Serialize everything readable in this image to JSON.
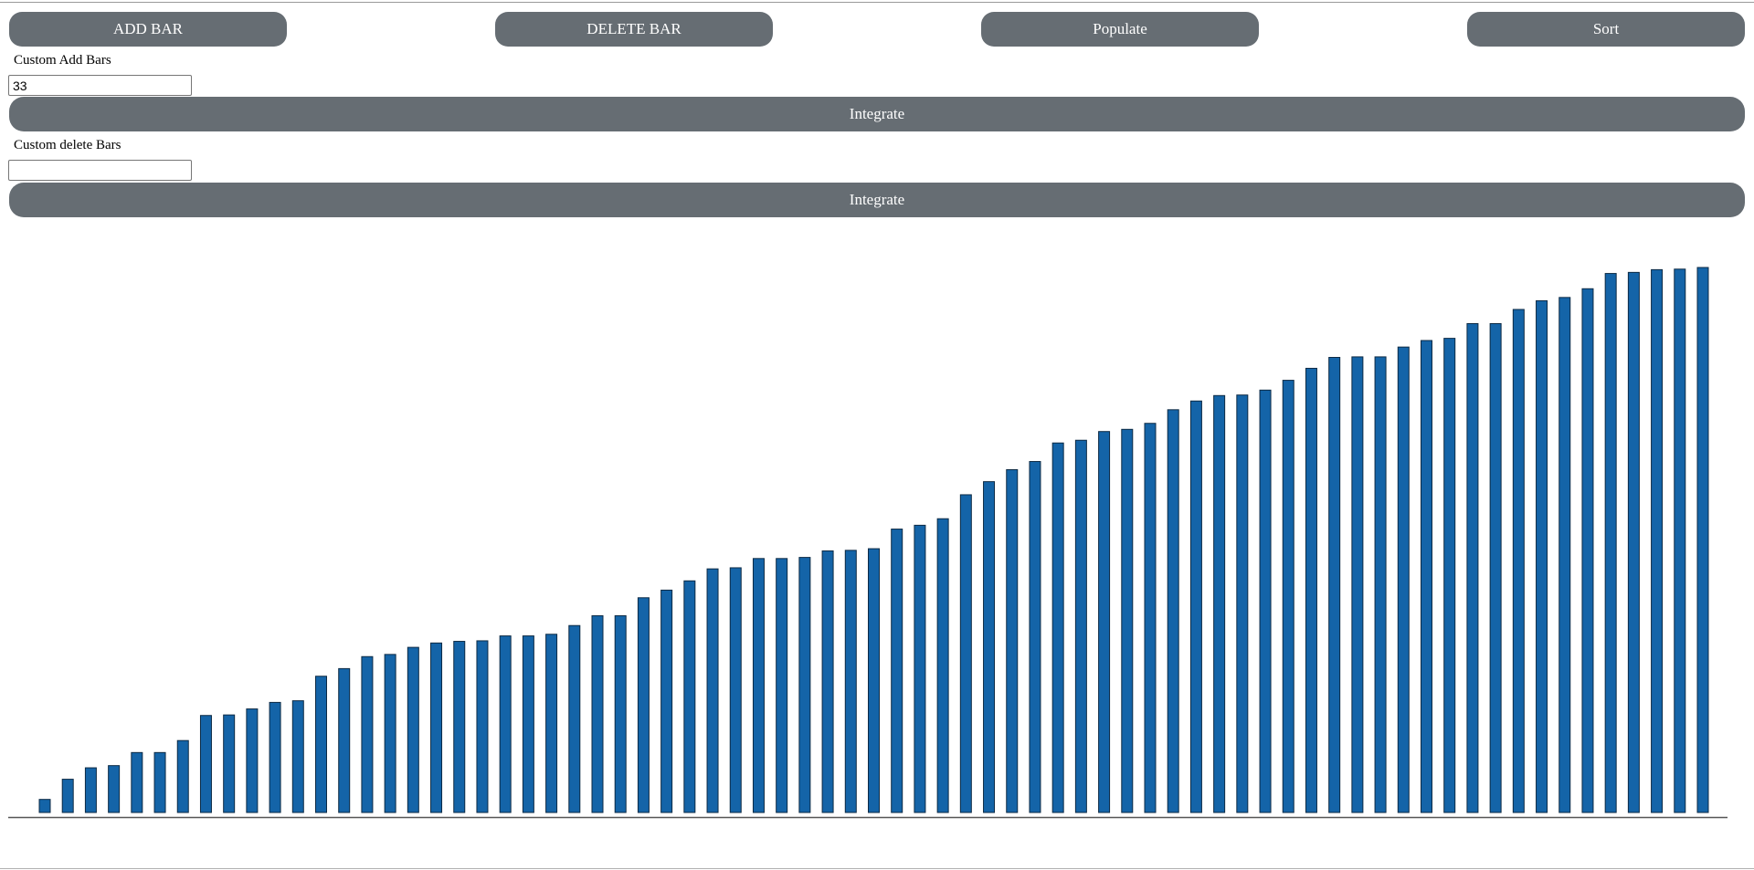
{
  "toolbar": {
    "add_label": "ADD BAR",
    "delete_label": "DELETE BAR",
    "populate_label": "Populate",
    "sort_label": "Sort"
  },
  "add_section": {
    "label": "Custom Add Bars",
    "value": "33",
    "button_label": "Integrate"
  },
  "delete_section": {
    "label": "Custom delete Bars",
    "value": "",
    "button_label": "Integrate"
  },
  "colors": {
    "button": "#666d73",
    "bar_fill": "#1464a8",
    "bar_stroke": "#0d2a44",
    "baseline": "#555555"
  },
  "chart_data": {
    "type": "bar",
    "title": "",
    "xlabel": "",
    "ylabel": "",
    "ylim": [
      0,
      100
    ],
    "values": [
      2.4,
      6.1,
      8.2,
      8.6,
      11.0,
      11.0,
      13.2,
      17.8,
      17.9,
      19.0,
      20.2,
      20.5,
      25.0,
      26.4,
      28.6,
      29.0,
      30.3,
      31.1,
      31.4,
      31.5,
      32.4,
      32.4,
      32.7,
      34.3,
      36.1,
      36.1,
      39.4,
      40.8,
      42.5,
      44.7,
      44.9,
      46.6,
      46.6,
      46.8,
      48.0,
      48.1,
      48.4,
      52.0,
      52.7,
      53.9,
      58.3,
      60.7,
      62.9,
      64.4,
      67.8,
      68.3,
      69.9,
      70.3,
      71.4,
      73.9,
      75.5,
      76.5,
      76.6,
      77.5,
      79.3,
      81.5,
      83.5,
      83.6,
      83.6,
      85.4,
      86.6,
      87.0,
      89.7,
      89.7,
      92.3,
      93.9,
      94.5,
      96.1,
      98.9,
      99.1,
      99.6,
      99.7,
      100.0
    ]
  }
}
